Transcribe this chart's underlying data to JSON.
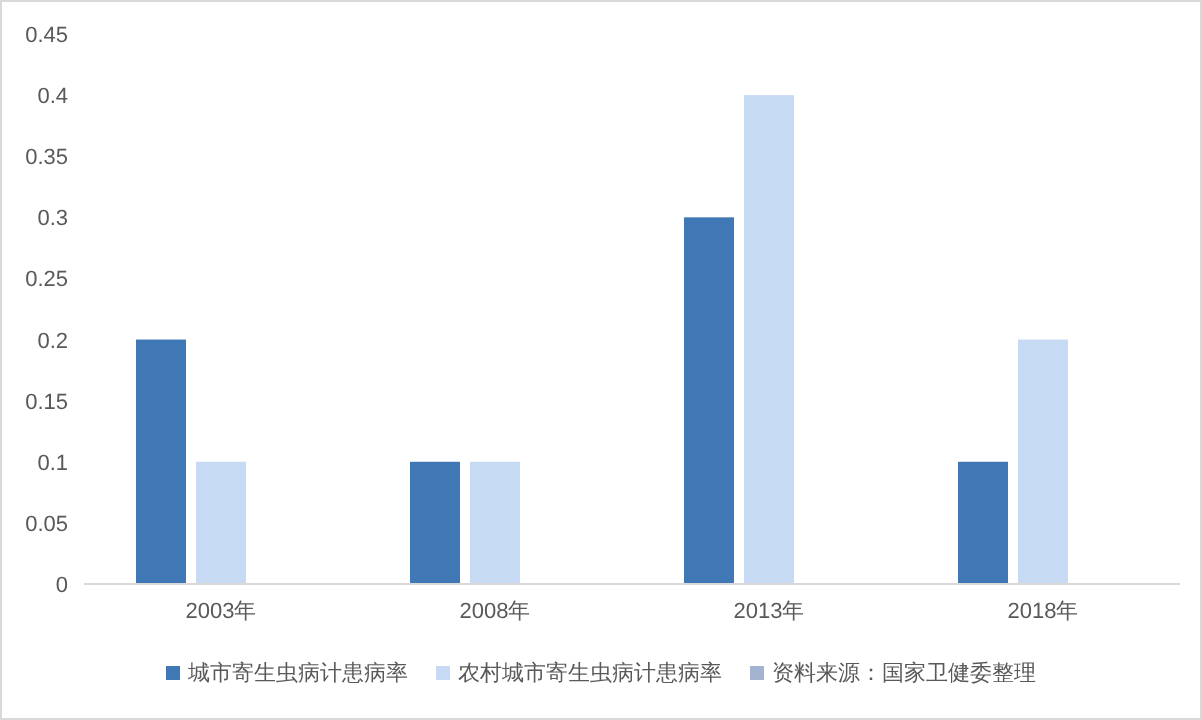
{
  "chart_data": {
    "type": "bar",
    "categories": [
      "2003年",
      "2008年",
      "2013年",
      "2018年"
    ],
    "series": [
      {
        "name": "城市寄生虫病计患病率",
        "color": "#3f78b4",
        "values": [
          0.2,
          0.1,
          0.3,
          0.1
        ]
      },
      {
        "name": "农村城市寄生虫病计患病率",
        "color": "#c6daf4",
        "values": [
          0.1,
          0.1,
          0.4,
          0.2
        ]
      },
      {
        "name": "资料来源：国家卫健委整理",
        "color": "#a4b3d0",
        "values": [
          null,
          null,
          null,
          null
        ]
      }
    ],
    "ylim": [
      0,
      0.45
    ],
    "yticks": [
      0,
      0.05,
      0.1,
      0.15,
      0.2,
      0.25,
      0.3,
      0.35,
      0.4,
      0.45
    ],
    "grid": false,
    "legend": "bottom"
  }
}
